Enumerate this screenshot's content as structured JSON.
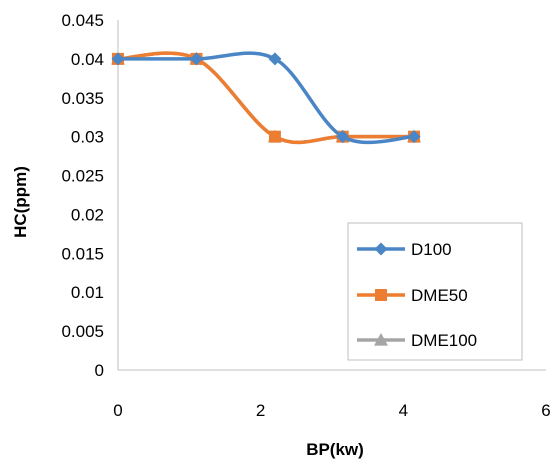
{
  "chart_data": {
    "type": "line",
    "title": "",
    "xlabel": "BP(kw)",
    "ylabel": "HC(ppm)",
    "xlim": [
      0,
      6
    ],
    "ylim": [
      0,
      0.045
    ],
    "x_ticks": [
      "0",
      "2",
      "4",
      "6"
    ],
    "y_ticks": [
      "0",
      "0.005",
      "0.01",
      "0.015",
      "0.02",
      "0.025",
      "0.03",
      "0.035",
      "0.04",
      "0.045"
    ],
    "grid": false,
    "smooth": true,
    "legend_position": "bottom-right",
    "series": [
      {
        "name": "D100",
        "color": "#4a86c5",
        "marker": "diamond",
        "x": [
          0,
          1.1,
          2.2,
          3.15,
          4.15
        ],
        "y": [
          0.04,
          0.04,
          0.04,
          0.03,
          0.03
        ]
      },
      {
        "name": "DME50",
        "color": "#ec7d31",
        "marker": "square",
        "x": [
          0,
          1.1,
          2.2,
          3.15,
          4.15
        ],
        "y": [
          0.04,
          0.04,
          0.03,
          0.03,
          0.03
        ]
      },
      {
        "name": "DME100",
        "color": "#a5a5a5",
        "marker": "triangle",
        "x": [
          0,
          1.1,
          2.2,
          3.15,
          4.15
        ],
        "y": [
          0.04,
          0.04,
          0.03,
          0.03,
          0.03
        ]
      }
    ]
  }
}
